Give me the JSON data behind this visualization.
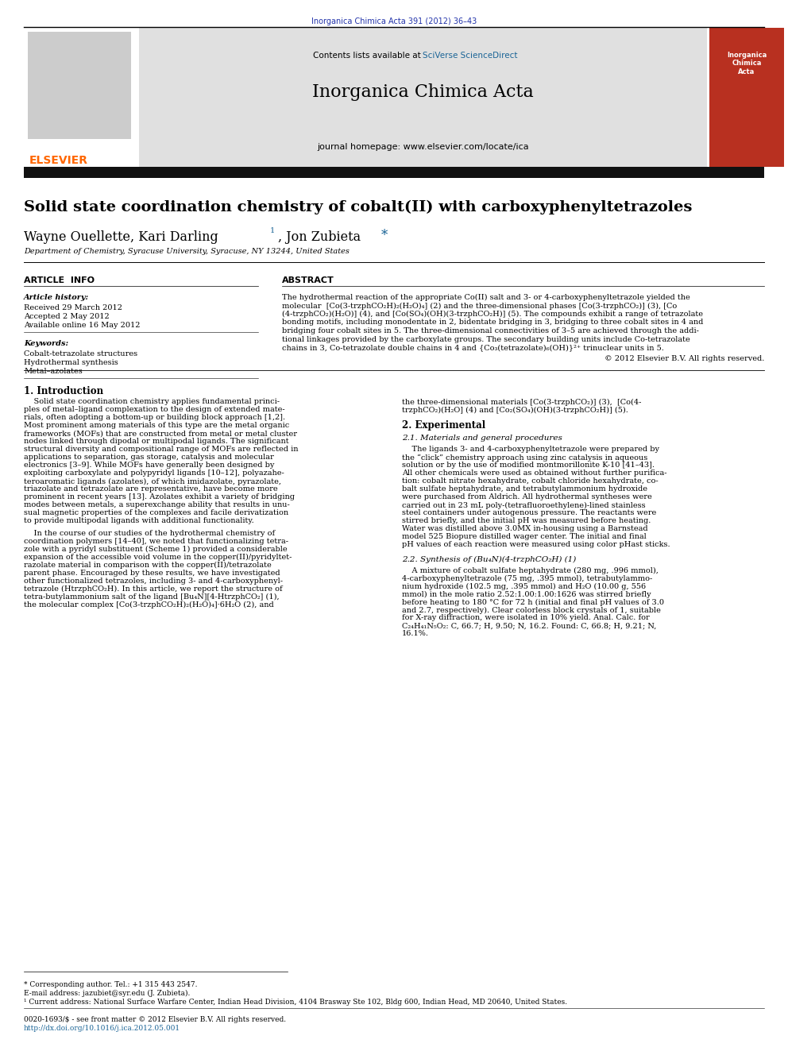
{
  "page_width": 9.92,
  "page_height": 13.23,
  "dpi": 100,
  "bg_color": "#ffffff",
  "journal_ref": "Inorganica Chimica Acta 391 (2012) 36–43",
  "journal_ref_color": "#2233aa",
  "header_bg": "#e0e0e0",
  "sciverse_color": "#1a6496",
  "journal_title": "Inorganica Chimica Acta",
  "journal_homepage": "journal homepage: www.elsevier.com/locate/ica",
  "elsevier_color": "#FF6600",
  "black_bar_color": "#111111",
  "article_title": "Solid state coordination chemistry of cobalt(II) with carboxyphenyltetrazoles",
  "affiliation": "Department of Chemistry, Syracuse University, Syracuse, NY 13244, United States",
  "section_article_info": "ARTICLE  INFO",
  "section_abstract": "ABSTRACT",
  "article_history_label": "Article history:",
  "received": "Received 29 March 2012",
  "accepted": "Accepted 2 May 2012",
  "available": "Available online 16 May 2012",
  "keywords_label": "Keywords:",
  "keyword1": "Cobalt-tetrazolate structures",
  "keyword2": "Hydrothermal synthesis",
  "keyword3": "Metal–azolates",
  "copyright": "© 2012 Elsevier B.V. All rights reserved.",
  "intro_heading": "1. Introduction",
  "experimental_heading": "2. Experimental",
  "exp_sub_heading": "2.1. Materials and general procedures",
  "synthesis_heading": "2.2. Synthesis of (Bu₄N)(4-trzphCO₂H) (1)",
  "footer_text1": "* Corresponding author. Tel.: +1 315 443 2547.",
  "footer_text2": "E-mail address: jazubiet@syr.edu (J. Zubieta).",
  "footer_text3": "¹ Current address: National Surface Warfare Center, Indian Head Division, 4104 Brasway Ste 102, Bldg 600, Indian Head, MD 20640, United States.",
  "footer_issn": "0020-1693/$ - see front matter © 2012 Elsevier B.V. All rights reserved.",
  "footer_doi": "http://dx.doi.org/10.1016/j.ica.2012.05.001"
}
